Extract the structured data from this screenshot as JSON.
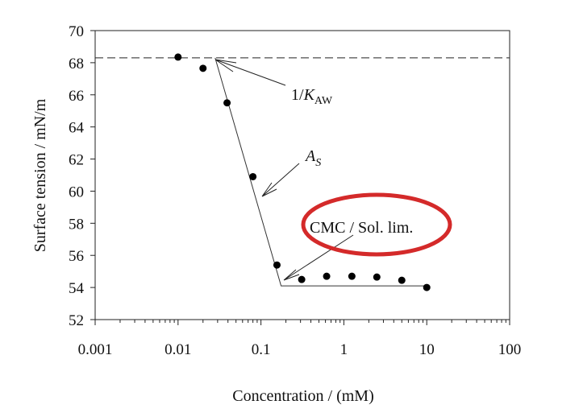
{
  "chart_data": {
    "type": "scatter",
    "title": "",
    "xlabel": "Concentration / (mM)",
    "ylabel": "Surface tension / mN/m",
    "xscale": "log",
    "xlim": [
      0.001,
      100
    ],
    "ylim": [
      52,
      70
    ],
    "xticks": [
      0.001,
      0.01,
      0.1,
      1,
      10,
      100
    ],
    "xtick_labels": [
      "0.001",
      "0.01",
      "0.1",
      "1",
      "10",
      "100"
    ],
    "yticks": [
      52,
      54,
      56,
      58,
      60,
      62,
      64,
      66,
      68,
      70
    ],
    "ytick_labels": [
      "52",
      "54",
      "56",
      "58",
      "60",
      "62",
      "64",
      "66",
      "68",
      "70"
    ],
    "grid": false,
    "points": {
      "x": [
        0.01,
        0.02,
        0.039,
        0.08,
        0.156,
        0.31,
        0.62,
        1.25,
        2.5,
        5,
        10
      ],
      "y": [
        68.35,
        67.65,
        65.5,
        60.9,
        55.4,
        54.5,
        54.7,
        54.7,
        54.65,
        54.45,
        54.0
      ]
    },
    "reference_line": {
      "style": "dashed",
      "y": 68.3
    },
    "fit_line": {
      "x": [
        0.028,
        0.175,
        10
      ],
      "y": [
        68.3,
        54.1,
        54.1
      ]
    },
    "annotations": {
      "kaw_prefix": "1/",
      "kaw_main": "K",
      "kaw_sub": "AW",
      "as_main": "A",
      "as_sub": "S",
      "cmc": "CMC / Sol. lim."
    },
    "highlight_color": "#d42a2a"
  }
}
